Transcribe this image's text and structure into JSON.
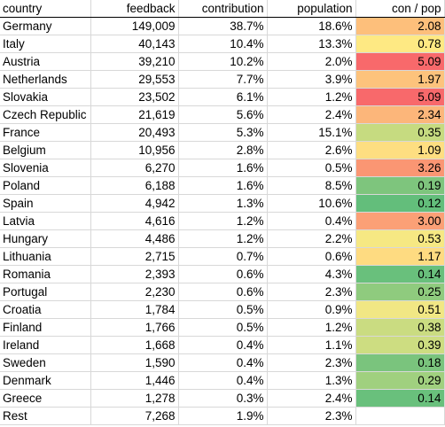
{
  "headers": {
    "country": "country",
    "feedback": "feedback",
    "contribution": "contribution",
    "population": "population",
    "con_pop": "con / pop"
  },
  "rows": [
    {
      "country": "Germany",
      "feedback": "149,009",
      "contribution": "38.7%",
      "population": "18.6%",
      "con_pop": "2.08",
      "color": "#fdbf7b"
    },
    {
      "country": "Italy",
      "feedback": "40,143",
      "contribution": "10.4%",
      "population": "13.3%",
      "con_pop": "0.78",
      "color": "#fee983"
    },
    {
      "country": "Austria",
      "feedback": "39,210",
      "contribution": "10.2%",
      "population": "2.0%",
      "con_pop": "5.09",
      "color": "#f8696b"
    },
    {
      "country": "Netherlands",
      "feedback": "29,553",
      "contribution": "7.7%",
      "population": "3.9%",
      "con_pop": "1.97",
      "color": "#fdc37c"
    },
    {
      "country": "Slovakia",
      "feedback": "23,502",
      "contribution": "6.1%",
      "population": "1.2%",
      "con_pop": "5.09",
      "color": "#f8696b"
    },
    {
      "country": "Czech Republic",
      "feedback": "21,619",
      "contribution": "5.6%",
      "population": "2.4%",
      "con_pop": "2.34",
      "color": "#fcb67a"
    },
    {
      "country": "France",
      "feedback": "20,493",
      "contribution": "5.3%",
      "population": "15.1%",
      "con_pop": "0.35",
      "color": "#c6db80"
    },
    {
      "country": "Belgium",
      "feedback": "10,956",
      "contribution": "2.8%",
      "population": "2.6%",
      "con_pop": "1.09",
      "color": "#fede81"
    },
    {
      "country": "Slovenia",
      "feedback": "6,270",
      "contribution": "1.6%",
      "population": "0.5%",
      "con_pop": "3.26",
      "color": "#fa9673"
    },
    {
      "country": "Poland",
      "feedback": "6,188",
      "contribution": "1.6%",
      "population": "8.5%",
      "con_pop": "0.19",
      "color": "#7ec57d"
    },
    {
      "country": "Spain",
      "feedback": "4,942",
      "contribution": "1.3%",
      "population": "10.6%",
      "con_pop": "0.12",
      "color": "#63be7b"
    },
    {
      "country": "Latvia",
      "feedback": "4,616",
      "contribution": "1.2%",
      "population": "0.4%",
      "con_pop": "3.00",
      "color": "#fba076"
    },
    {
      "country": "Hungary",
      "feedback": "4,486",
      "contribution": "1.2%",
      "population": "2.2%",
      "con_pop": "0.53",
      "color": "#f6e883"
    },
    {
      "country": "Lithuania",
      "feedback": "2,715",
      "contribution": "0.7%",
      "population": "0.6%",
      "con_pop": "1.17",
      "color": "#fedb81"
    },
    {
      "country": "Romania",
      "feedback": "2,393",
      "contribution": "0.6%",
      "population": "4.3%",
      "con_pop": "0.14",
      "color": "#69c07c"
    },
    {
      "country": "Portugal",
      "feedback": "2,230",
      "contribution": "0.6%",
      "population": "2.3%",
      "con_pop": "0.25",
      "color": "#8fcb7e"
    },
    {
      "country": "Croatia",
      "feedback": "1,784",
      "contribution": "0.5%",
      "population": "0.9%",
      "con_pop": "0.51",
      "color": "#f1e784"
    },
    {
      "country": "Finland",
      "feedback": "1,766",
      "contribution": "0.5%",
      "population": "1.2%",
      "con_pop": "0.38",
      "color": "#cadc81"
    },
    {
      "country": "Ireland",
      "feedback": "1,668",
      "contribution": "0.4%",
      "population": "1.1%",
      "con_pop": "0.39",
      "color": "#cddd81"
    },
    {
      "country": "Sweden",
      "feedback": "1,590",
      "contribution": "0.4%",
      "population": "2.3%",
      "con_pop": "0.18",
      "color": "#7ac47d"
    },
    {
      "country": "Denmark",
      "feedback": "1,446",
      "contribution": "0.4%",
      "population": "1.3%",
      "con_pop": "0.29",
      "color": "#a0d07f"
    },
    {
      "country": "Greece",
      "feedback": "1,278",
      "contribution": "0.3%",
      "population": "2.4%",
      "con_pop": "0.14",
      "color": "#69c07c"
    }
  ],
  "rest": {
    "country": "Rest",
    "feedback": "7,268",
    "contribution": "1.9%",
    "population": "2.3%",
    "con_pop": ""
  }
}
